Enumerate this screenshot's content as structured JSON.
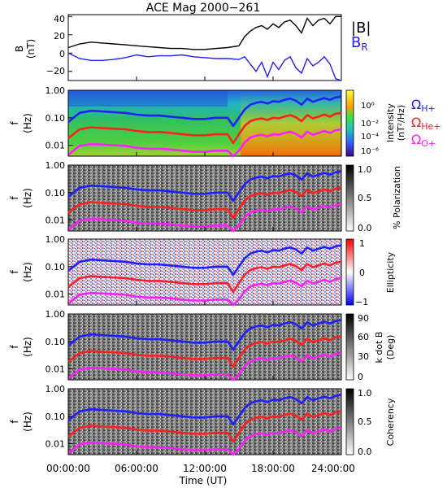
{
  "title": "ACE Mag 2000−261",
  "xlabel": "Time (UT)",
  "x_tick_labels": [
    "00:00:00",
    "06:00:00",
    "12:00:00",
    "18:00:00",
    "24:00:00"
  ],
  "legend_top": {
    "b_total": "|B|",
    "b_r": "B",
    "b_r_sub": "R"
  },
  "ion_labels": [
    {
      "text": "Ω",
      "sub": "H+",
      "color": "#2020ff"
    },
    {
      "text": "Ω",
      "sub": "He+",
      "color": "#ff2020"
    },
    {
      "text": "Ω",
      "sub": "O+",
      "color": "#ff20ff"
    }
  ],
  "panels": {
    "b": {
      "ylabel_top": "B",
      "ylabel_bottom": "(nT)",
      "yticks": [
        "40",
        "20",
        "0",
        "−20"
      ]
    },
    "freq": {
      "ylabel_top": "f",
      "ylabel_bottom": "(Hz)",
      "yticks": [
        "1.00",
        "0.10",
        "0.01"
      ]
    },
    "intensity": {
      "cbar_label_1": "Intensity",
      "cbar_label_2": "(nT²/Hz)",
      "cbar_ticks": [
        "10⁰",
        "10⁻²",
        "10⁻⁴",
        "10⁻⁶"
      ]
    },
    "polarization": {
      "cbar_label": "% Polarization",
      "cbar_ticks": [
        "1.0",
        "0.5",
        "0.0"
      ]
    },
    "ellipticity": {
      "cbar_label": "Ellipticity",
      "cbar_ticks": [
        "1",
        "0",
        "−1"
      ]
    },
    "kdotb": {
      "cbar_label_1": "k dot B",
      "cbar_label_2": "(Deg)",
      "cbar_ticks": [
        "90",
        "60",
        "30",
        "0"
      ]
    },
    "coherency": {
      "cbar_label": "Coherency",
      "cbar_ticks": [
        "1.0",
        "0.5",
        "0.0"
      ]
    }
  },
  "chart_data": [
    {
      "type": "line",
      "title": "ACE Mag 2000−261",
      "ylabel": "B (nT)",
      "ylim": [
        -30,
        42
      ],
      "xlim_hours": [
        0,
        24
      ],
      "series": [
        {
          "name": "|B|",
          "color": "#000000",
          "x": [
            0,
            1,
            2,
            3,
            4,
            5,
            6,
            7,
            8,
            9,
            10,
            11,
            12,
            13,
            14,
            15,
            15.5,
            16,
            16.5,
            17,
            17.5,
            18,
            18.5,
            19,
            19.5,
            20,
            20.5,
            21,
            21.5,
            22,
            22.5,
            23,
            23.5,
            24
          ],
          "y": [
            6,
            10,
            12,
            11,
            10,
            9,
            8,
            7,
            6,
            5,
            5,
            4,
            4,
            5,
            6,
            8,
            18,
            24,
            28,
            30,
            26,
            32,
            28,
            34,
            36,
            30,
            22,
            38,
            30,
            36,
            38,
            32,
            40,
            40
          ]
        },
        {
          "name": "B_R",
          "color": "#2020ff",
          "x": [
            0,
            1,
            2,
            3,
            4,
            5,
            6,
            7,
            8,
            9,
            10,
            11,
            12,
            13,
            14,
            15,
            15.5,
            16,
            16.5,
            17,
            17.5,
            18,
            18.5,
            19,
            19.5,
            20,
            20.5,
            21,
            21.5,
            22,
            22.5,
            23,
            23.5,
            24
          ],
          "y": [
            0,
            -6,
            -8,
            -8,
            -7,
            -5,
            -2,
            -4,
            -3,
            -3,
            -2,
            -4,
            -5,
            -6,
            -6,
            -7,
            -4,
            -12,
            -20,
            -10,
            -26,
            -10,
            -18,
            -8,
            -4,
            -16,
            -22,
            -6,
            -14,
            -10,
            -4,
            -12,
            -28,
            -30
          ]
        }
      ]
    },
    {
      "type": "heatmap",
      "name": "spectrograms",
      "panels": [
        "Intensity",
        "% Polarization",
        "Ellipticity",
        "k dot B",
        "Coherency"
      ],
      "ylabel": "f (Hz)",
      "yscale": "log",
      "ylim": [
        0.004,
        1.0
      ],
      "xlim_hours": [
        0,
        24
      ],
      "overlays": [
        {
          "name": "ΩH+",
          "color": "#2020ff",
          "x": [
            0,
            1,
            2,
            3,
            4,
            5,
            6,
            7,
            8,
            9,
            10,
            11,
            12,
            13,
            14,
            14.5,
            15,
            15.5,
            16,
            16.5,
            17,
            17.5,
            18,
            18.5,
            19,
            19.5,
            20,
            20.5,
            21,
            21.5,
            22,
            22.5,
            23,
            23.5,
            24
          ],
          "y": [
            0.07,
            0.15,
            0.18,
            0.17,
            0.16,
            0.15,
            0.13,
            0.12,
            0.12,
            0.11,
            0.1,
            0.09,
            0.09,
            0.1,
            0.1,
            0.05,
            0.1,
            0.2,
            0.3,
            0.35,
            0.38,
            0.33,
            0.4,
            0.38,
            0.45,
            0.5,
            0.42,
            0.3,
            0.5,
            0.38,
            0.45,
            0.52,
            0.45,
            0.55,
            0.6
          ]
        },
        {
          "name": "ΩHe+",
          "color": "#ff2020",
          "x": [
            0,
            1,
            2,
            3,
            4,
            5,
            6,
            7,
            8,
            9,
            10,
            11,
            12,
            13,
            14,
            14.5,
            15,
            15.5,
            16,
            16.5,
            17,
            17.5,
            18,
            18.5,
            19,
            19.5,
            20,
            20.5,
            21,
            21.5,
            22,
            22.5,
            23,
            23.5,
            24
          ],
          "y": [
            0.018,
            0.038,
            0.045,
            0.042,
            0.04,
            0.038,
            0.033,
            0.03,
            0.03,
            0.028,
            0.025,
            0.023,
            0.023,
            0.025,
            0.025,
            0.012,
            0.025,
            0.05,
            0.075,
            0.088,
            0.095,
            0.083,
            0.1,
            0.095,
            0.11,
            0.125,
            0.105,
            0.075,
            0.125,
            0.095,
            0.11,
            0.13,
            0.11,
            0.14,
            0.15
          ]
        },
        {
          "name": "ΩO+",
          "color": "#ff20ff",
          "x": [
            0,
            1,
            2,
            3,
            4,
            5,
            6,
            7,
            8,
            9,
            10,
            11,
            12,
            13,
            14,
            14.5,
            15,
            15.5,
            16,
            16.5,
            17,
            17.5,
            18,
            18.5,
            19,
            19.5,
            20,
            20.5,
            21,
            21.5,
            22,
            22.5,
            23,
            23.5,
            24
          ],
          "y": [
            0.0045,
            0.0095,
            0.011,
            0.0105,
            0.01,
            0.0095,
            0.008,
            0.0075,
            0.0075,
            0.007,
            0.0063,
            0.0058,
            0.0058,
            0.0063,
            0.0063,
            0.004,
            0.0063,
            0.0125,
            0.019,
            0.022,
            0.024,
            0.021,
            0.025,
            0.024,
            0.028,
            0.031,
            0.026,
            0.019,
            0.031,
            0.024,
            0.028,
            0.033,
            0.028,
            0.035,
            0.038
          ]
        }
      ]
    }
  ]
}
